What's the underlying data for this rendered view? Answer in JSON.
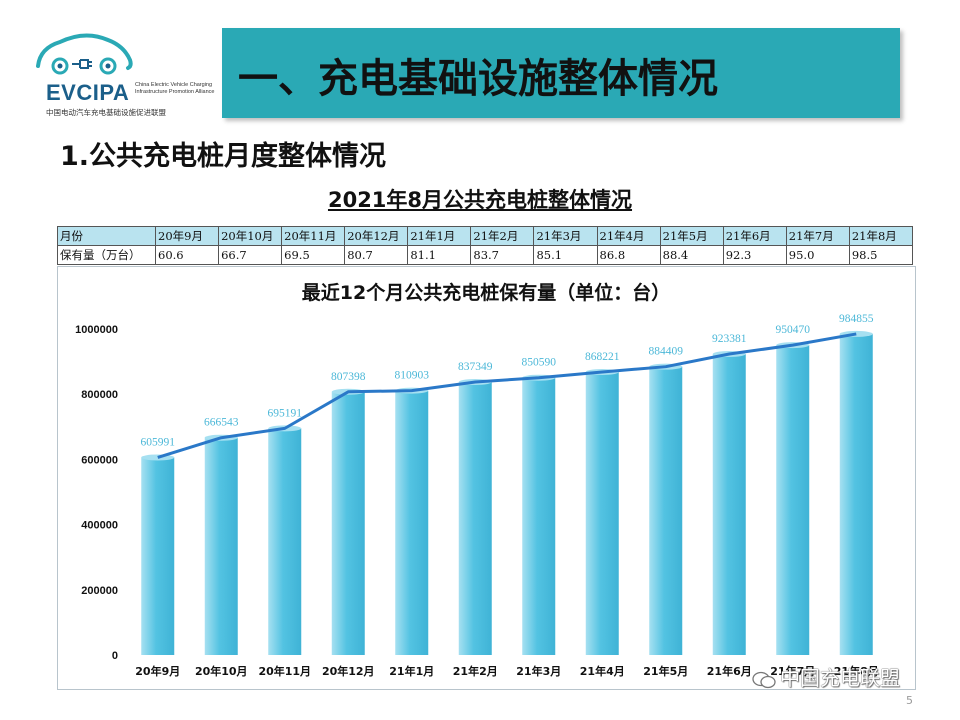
{
  "logo": {
    "name": "EVCIPA",
    "subtitle": "China Electric Vehicle Charging Infrastructure Promotion Alliance",
    "cn_name": "中国电动汽车充电基础设施促进联盟"
  },
  "header": {
    "title": "一、充电基础设施整体情况"
  },
  "section": {
    "heading": "1.公共充电桩月度整体情况"
  },
  "table": {
    "title": "2021年8月公共充电桩整体情况",
    "row_labels": [
      "月份",
      "保有量（万台）"
    ],
    "months": [
      "20年9月",
      "20年10月",
      "20年11月",
      "20年12月",
      "21年1月",
      "21年2月",
      "21年3月",
      "21年4月",
      "21年5月",
      "21年6月",
      "21年7月",
      "21年8月"
    ],
    "values": [
      "60.6",
      "66.7",
      "69.5",
      "80.7",
      "81.1",
      "83.7",
      "85.1",
      "86.8",
      "88.4",
      "92.3",
      "95.0",
      "98.5"
    ]
  },
  "chart_data": {
    "type": "bar",
    "title": "最近12个月公共充电桩保有量（单位：台）",
    "categories": [
      "20年9月",
      "20年10月",
      "20年11月",
      "20年12月",
      "21年1月",
      "21年2月",
      "21年3月",
      "21年4月",
      "21年5月",
      "21年6月",
      "21年7月",
      "21年8月"
    ],
    "values": [
      605991,
      666543,
      695191,
      807398,
      810903,
      837349,
      850590,
      868221,
      884409,
      923381,
      950470,
      984855
    ],
    "overlay": "line",
    "ylim": [
      0,
      1000000
    ],
    "yticks": [
      "0",
      "200000",
      "400000",
      "600000",
      "800000",
      "1000000"
    ],
    "xlabel": "",
    "ylabel": "",
    "colors": {
      "bar": "#53c3e2",
      "bar_light": "#a6e0f1",
      "line": "#2a78c8",
      "label": "#4cb8d8"
    }
  },
  "watermark": {
    "text": "中国充电联盟"
  },
  "footer": {
    "page": "5"
  }
}
